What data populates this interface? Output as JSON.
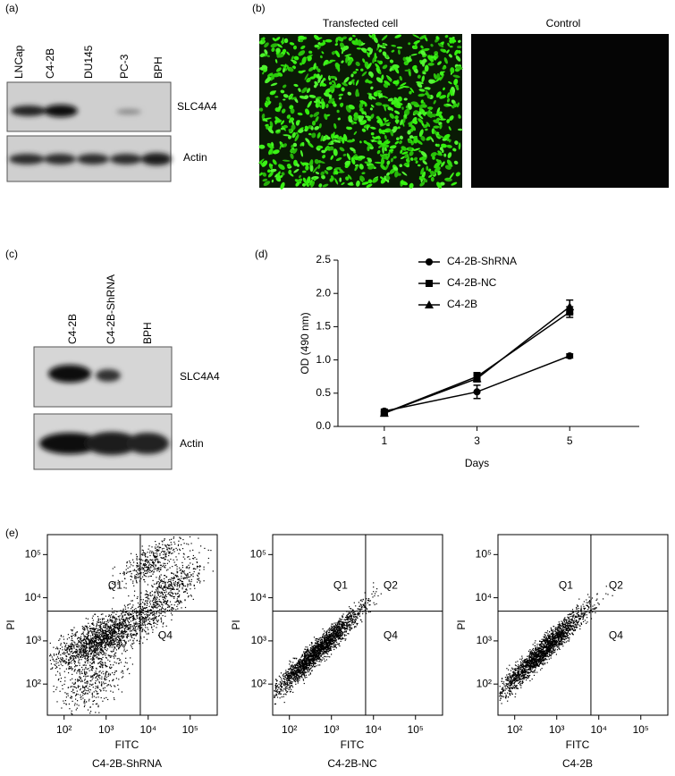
{
  "panel_labels": [
    "(a)",
    "(b)",
    "(c)",
    "(d)",
    "(e)"
  ],
  "blot_a": {
    "lanes": [
      "LNCap",
      "C4-2B",
      "DU145",
      "PC-3",
      "BPH"
    ],
    "bands": [
      "SLC4A4",
      "Actin"
    ]
  },
  "fluorescence": {
    "images": [
      "Transfected cell",
      "Control"
    ]
  },
  "blot_c": {
    "lanes": [
      "C4-2B",
      "C4-2B-ShRNA",
      "BPH"
    ],
    "bands": [
      "SLC4A4",
      "Actin"
    ]
  },
  "chart_data": {
    "type": "line",
    "x_label": "Days",
    "y_label": "OD (490 nm)",
    "x": [
      1,
      3,
      5
    ],
    "xlim": [
      0,
      6.5
    ],
    "xticks": [
      1,
      3,
      5
    ],
    "ylim": [
      0,
      2.5
    ],
    "yticks": [
      {
        "value": 0,
        "label": "0.0"
      },
      {
        "value": 0.5,
        "label": "0.5"
      },
      {
        "value": 1,
        "label": "1.0"
      },
      {
        "value": 1.5,
        "label": "1.5"
      },
      {
        "value": 2,
        "label": "2.0"
      },
      {
        "value": 2.5,
        "label": "2.5"
      }
    ],
    "legend": "upper-left",
    "series": [
      {
        "name": "C4-2B-ShRNA",
        "color": "#000000",
        "marker": "circle",
        "values": [
          0.23,
          0.52,
          1.06
        ],
        "errors": [
          0.03,
          0.1,
          0.03
        ]
      },
      {
        "name": "C4-2B-NC",
        "color": "#000000",
        "marker": "square",
        "values": [
          0.2,
          0.75,
          1.72
        ],
        "errors": [
          0.02,
          0.06,
          0.08
        ]
      },
      {
        "name": "C4-2B",
        "color": "#000000",
        "marker": "triangle",
        "values": [
          0.2,
          0.72,
          1.8
        ],
        "errors": [
          0.02,
          0.05,
          0.1
        ]
      }
    ]
  },
  "flow": {
    "x_label": "FITC",
    "y_label": "PI",
    "quadrants": [
      "Q1",
      "Q2",
      "Q4"
    ],
    "xlim": [
      40,
      440000
    ],
    "ylim": [
      19,
      290000
    ],
    "gate": [
      6500,
      4900
    ],
    "xticks": [
      {
        "value": 100,
        "label": "10²"
      },
      {
        "value": 1000,
        "label": "10³"
      },
      {
        "value": 10000,
        "label": "10⁴"
      },
      {
        "value": 100000,
        "label": "10⁵"
      }
    ],
    "yticks": [
      {
        "value": 100,
        "label": "10²"
      },
      {
        "value": 1000,
        "label": "10³"
      },
      {
        "value": 10000,
        "label": "10⁴"
      },
      {
        "value": 100000,
        "label": "10⁵"
      }
    ],
    "samples": [
      "C4-2B-ShRNA",
      "C4-2B-NC",
      "C4-2B"
    ]
  }
}
